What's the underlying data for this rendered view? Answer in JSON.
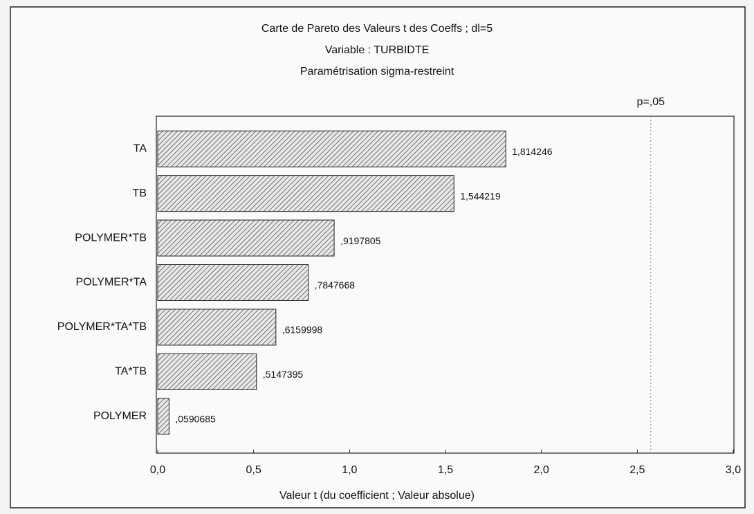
{
  "chart_data": {
    "type": "hbar",
    "title": "Carte de Pareto des Valeurs t des Coeffs ; dl=5",
    "subtitle": [
      "Variable : TURBIDTE",
      "Paramétrisation sigma-restreint"
    ],
    "x_label": "Valeur t (du coefficient ; Valeur absolue)",
    "categories": [
      "TA",
      "TB",
      "POLYMER*TB",
      "POLYMER*TA",
      "POLYMER*TA*TB",
      "TA*TB",
      "POLYMER"
    ],
    "values": [
      1.814246,
      1.544219,
      0.9197805,
      0.7847668,
      0.6159998,
      0.5147395,
      0.0590685
    ],
    "value_labels": [
      "1,814246",
      "1,544219",
      ",9197805",
      ",7847668",
      ",6159998",
      ",5147395",
      ",0590685"
    ],
    "color": "#555555",
    "xlim": [
      0,
      3
    ],
    "xticks": [
      {
        "value": 0,
        "label": "0,0"
      },
      {
        "value": 0.5,
        "label": "0,5"
      },
      {
        "value": 1,
        "label": "1,0"
      },
      {
        "value": 1.5,
        "label": "1,5"
      },
      {
        "value": 2,
        "label": "2,0"
      },
      {
        "value": 2.5,
        "label": "2,5"
      },
      {
        "value": 3,
        "label": "3,0"
      }
    ],
    "reference_line": {
      "value": 2.57,
      "label": "p=,05"
    }
  }
}
